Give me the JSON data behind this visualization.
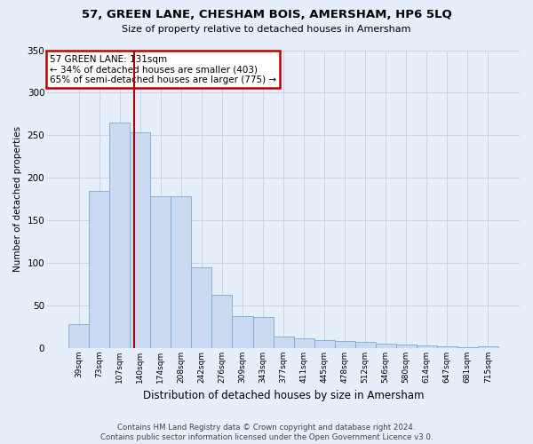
{
  "title": "57, GREEN LANE, CHESHAM BOIS, AMERSHAM, HP6 5LQ",
  "subtitle": "Size of property relative to detached houses in Amersham",
  "xlabel": "Distribution of detached houses by size in Amersham",
  "ylabel": "Number of detached properties",
  "categories": [
    "39sqm",
    "73sqm",
    "107sqm",
    "140sqm",
    "174sqm",
    "208sqm",
    "242sqm",
    "276sqm",
    "309sqm",
    "343sqm",
    "377sqm",
    "411sqm",
    "445sqm",
    "478sqm",
    "512sqm",
    "546sqm",
    "580sqm",
    "614sqm",
    "647sqm",
    "681sqm",
    "715sqm"
  ],
  "values": [
    28,
    185,
    265,
    253,
    178,
    178,
    95,
    63,
    38,
    37,
    14,
    11,
    9,
    8,
    7,
    5,
    4,
    3,
    2,
    1,
    2
  ],
  "bar_color": "#c8d9f0",
  "bar_edgecolor": "#7aaad4",
  "background_color": "#e6eefa",
  "grid_color": "#d0d8e8",
  "vline_color": "#aa0000",
  "vline_x": 2.72,
  "annotation_text": "57 GREEN LANE: 131sqm\n← 34% of detached houses are smaller (403)\n65% of semi-detached houses are larger (775) →",
  "annotation_box_edgecolor": "#bb0000",
  "annotation_box_facecolor": "#ffffff",
  "footer1": "Contains HM Land Registry data © Crown copyright and database right 2024.",
  "footer2": "Contains public sector information licensed under the Open Government Licence v3.0.",
  "ylim": [
    0,
    350
  ],
  "yticks": [
    0,
    50,
    100,
    150,
    200,
    250,
    300,
    350
  ]
}
